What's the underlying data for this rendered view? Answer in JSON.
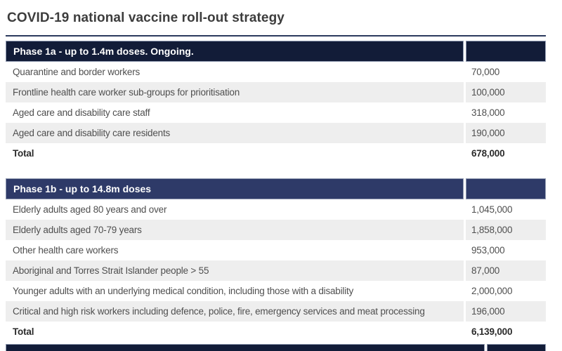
{
  "page": {
    "title": "COVID-19 national vaccine roll-out strategy"
  },
  "colors": {
    "title_text": "#3d3d3d",
    "rule_color": "#2c3a5e",
    "phase1a_header_bg": "#121c38",
    "phase1b_header_bg": "#2e3a68",
    "header_text": "#ffffff",
    "header_border": "#8f99b0",
    "row_alt_bg": "#eeeeee",
    "body_text": "#4f4f4f",
    "total_text": "#2b2b2b"
  },
  "phases": [
    {
      "header": "Phase 1a - up to 1.4m doses. Ongoing.",
      "rows": [
        {
          "label": "Quarantine and border workers",
          "value": "70,000"
        },
        {
          "label": "Frontline health care worker sub-groups for prioritisation",
          "value": "100,000"
        },
        {
          "label": "Aged care and disability care staff",
          "value": "318,000"
        },
        {
          "label": "Aged care and disability care residents",
          "value": "190,000"
        }
      ],
      "total_label": "Total",
      "total_value": "678,000"
    },
    {
      "header": "Phase 1b - up to 14.8m doses",
      "rows": [
        {
          "label": "Elderly adults aged 80 years and over",
          "value": "1,045,000"
        },
        {
          "label": "Elderly adults aged 70-79 years",
          "value": "1,858,000"
        },
        {
          "label": "Other health care workers",
          "value": "953,000"
        },
        {
          "label": "Aboriginal and Torres Strait Islander people > 55",
          "value": "87,000"
        },
        {
          "label": "Younger adults with an underlying medical condition, including those with a disability",
          "value": "2,000,000"
        },
        {
          "label": "Critical and high risk workers including defence, police, fire, emergency services and meat processing",
          "value": "196,000"
        }
      ],
      "total_label": "Total",
      "total_value": "6,139,000"
    }
  ]
}
